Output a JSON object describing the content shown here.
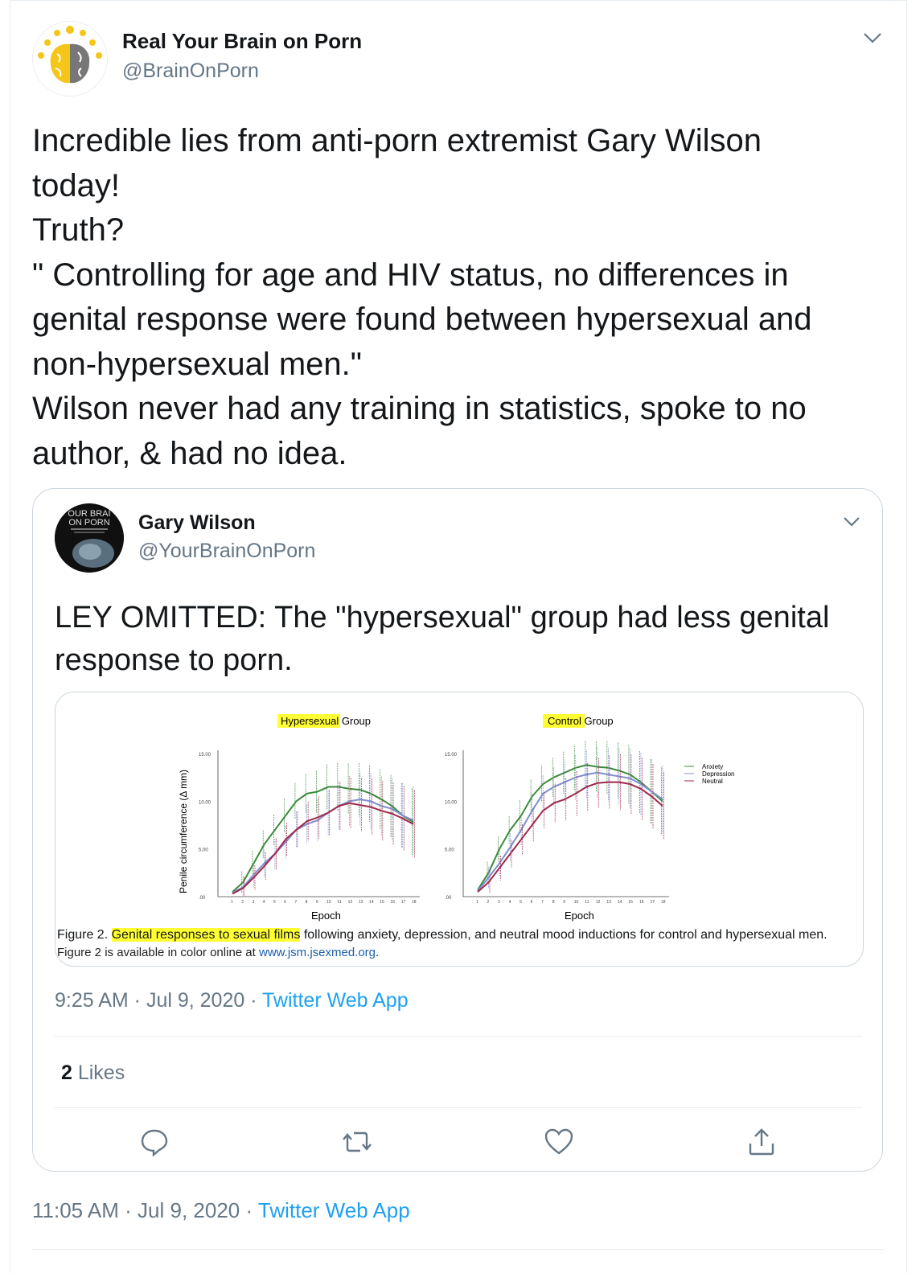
{
  "tweet": {
    "author_name": "Real Your Brain on Porn",
    "author_handle": "@BrainOnPorn",
    "lines": [
      "Incredible lies from anti-porn extremist Gary Wilson",
      "today!",
      "Truth?",
      "\" Controlling for age and HIV status, no differences in",
      "genital response were found between hypersexual and",
      "non-hypersexual men.\"",
      "Wilson never had any training in statistics, spoke to no",
      "author, & had no idea."
    ],
    "timestamp": "11:05 AM · Jul 9, 2020 · ",
    "source": "Twitter Web App"
  },
  "quoted": {
    "author_name": "Gary Wilson",
    "author_handle": "@YourBrainOnPorn",
    "avatar_text": [
      "OUR BRAI",
      "ON PORN"
    ],
    "lines": [
      "LEY OMITTED: The \"hypersexual\" group had less genital",
      "response to porn."
    ],
    "timestamp": "9:25 AM · Jul 9, 2020 · ",
    "source": "Twitter Web App",
    "likes_count": "2",
    "likes_label": " Likes"
  },
  "figure": {
    "panel1_title_hl": "Hypersexual",
    "panel1_title_rest": " Group",
    "panel2_title_hl": "Control",
    "panel2_title_rest": " Group",
    "ylabel": "Penile circumference (Δ mm)",
    "xlabel": "Epoch",
    "yticks": [
      "15.00",
      "10.00",
      "5.00",
      ".00"
    ],
    "legend": [
      "Anxiety",
      "Depression",
      "Neutral"
    ],
    "caption_label": "Figure 2.",
    "caption_hl": "Genital responses to sexual films",
    "caption_rest": " following anxiety, depression, and neutral mood inductions for control and hypersexual men.",
    "caption2_text": "Figure 2 is available in color online at ",
    "caption2_link": "www.jsm.jsexmed.org",
    "caption2_end": "."
  },
  "colors": {
    "accent": "#1da1f2",
    "muted": "#657786",
    "anxiety": "#3a8a3a",
    "depression": "#7f8fd0",
    "neutral": "#a0284a"
  },
  "chart_data": [
    {
      "type": "line",
      "title": "Hypersexual Group",
      "xlabel": "Epoch",
      "ylabel": "Penile circumference (Δ mm)",
      "x": [
        1,
        2,
        3,
        4,
        5,
        6,
        7,
        8,
        9,
        10,
        11,
        12,
        13,
        14,
        15,
        16,
        17,
        18
      ],
      "ylim": [
        0,
        15
      ],
      "series": [
        {
          "name": "Anxiety",
          "values": [
            0.5,
            1.5,
            3.5,
            5.5,
            7,
            8.5,
            10,
            10.8,
            11,
            11.5,
            11.5,
            11.3,
            11.2,
            10.8,
            10.2,
            9.5,
            8.5,
            7.8
          ]
        },
        {
          "name": "Depression",
          "values": [
            0.4,
            1,
            2.3,
            3.5,
            4.5,
            5.7,
            7,
            7.6,
            8,
            8.8,
            9.5,
            10,
            10.2,
            10,
            9.5,
            9.2,
            8.5,
            8
          ]
        },
        {
          "name": "Neutral",
          "values": [
            0.3,
            0.9,
            2,
            3.2,
            4.5,
            6,
            7,
            7.9,
            8.3,
            8.8,
            9.5,
            9.8,
            9.6,
            9.4,
            9,
            8.7,
            8.2,
            7.6
          ]
        }
      ]
    },
    {
      "type": "line",
      "title": "Control Group",
      "xlabel": "Epoch",
      "ylabel": "Penile circumference (Δ mm)",
      "x": [
        1,
        2,
        3,
        4,
        5,
        6,
        7,
        8,
        9,
        10,
        11,
        12,
        13,
        14,
        15,
        16,
        17,
        18
      ],
      "ylim": [
        0,
        15
      ],
      "series": [
        {
          "name": "Anxiety",
          "values": [
            0.7,
            2.5,
            5,
            7,
            8.5,
            10.5,
            11.8,
            12.5,
            13,
            13.5,
            13.8,
            13.6,
            13.5,
            13.2,
            12.8,
            12,
            11,
            10
          ]
        },
        {
          "name": "Depression",
          "values": [
            0.6,
            2,
            3.5,
            5.2,
            7,
            9,
            10.8,
            11.5,
            12,
            12.5,
            12.8,
            13,
            12.8,
            12.6,
            12.4,
            11.8,
            11,
            10.2
          ]
        },
        {
          "name": "Neutral",
          "values": [
            0.5,
            1.5,
            3,
            4.5,
            6,
            7.5,
            9,
            9.8,
            10.2,
            10.8,
            11.5,
            11.9,
            12,
            12,
            11.8,
            11.3,
            10.5,
            9.5
          ]
        }
      ]
    }
  ]
}
